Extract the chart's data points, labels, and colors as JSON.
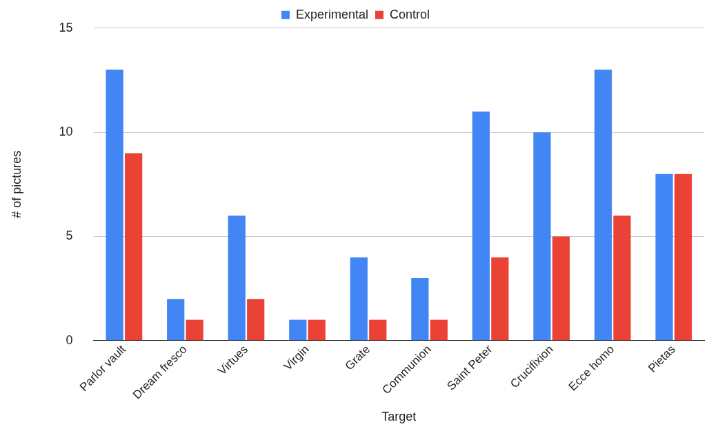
{
  "chart_data": {
    "type": "bar",
    "xlabel": "Target",
    "ylabel": "# of pictures",
    "categories": [
      "Parlor vault",
      "Dream fresco",
      "Virtues",
      "Virgin",
      "Grate",
      "Communion",
      "Saint Peter",
      "Crucifixion",
      "Ecce homo",
      "Pietas"
    ],
    "series": [
      {
        "name": "Experimental",
        "color": "#4285f4",
        "values": [
          13,
          2,
          6,
          1,
          4,
          3,
          11,
          10,
          13,
          8
        ]
      },
      {
        "name": "Control",
        "color": "#ea4335",
        "values": [
          9,
          1,
          2,
          1,
          1,
          1,
          4,
          5,
          6,
          8
        ]
      }
    ],
    "ylim": [
      0,
      15
    ],
    "yticks": [
      0,
      5,
      10,
      15
    ],
    "grid": "y",
    "legend": "top"
  }
}
